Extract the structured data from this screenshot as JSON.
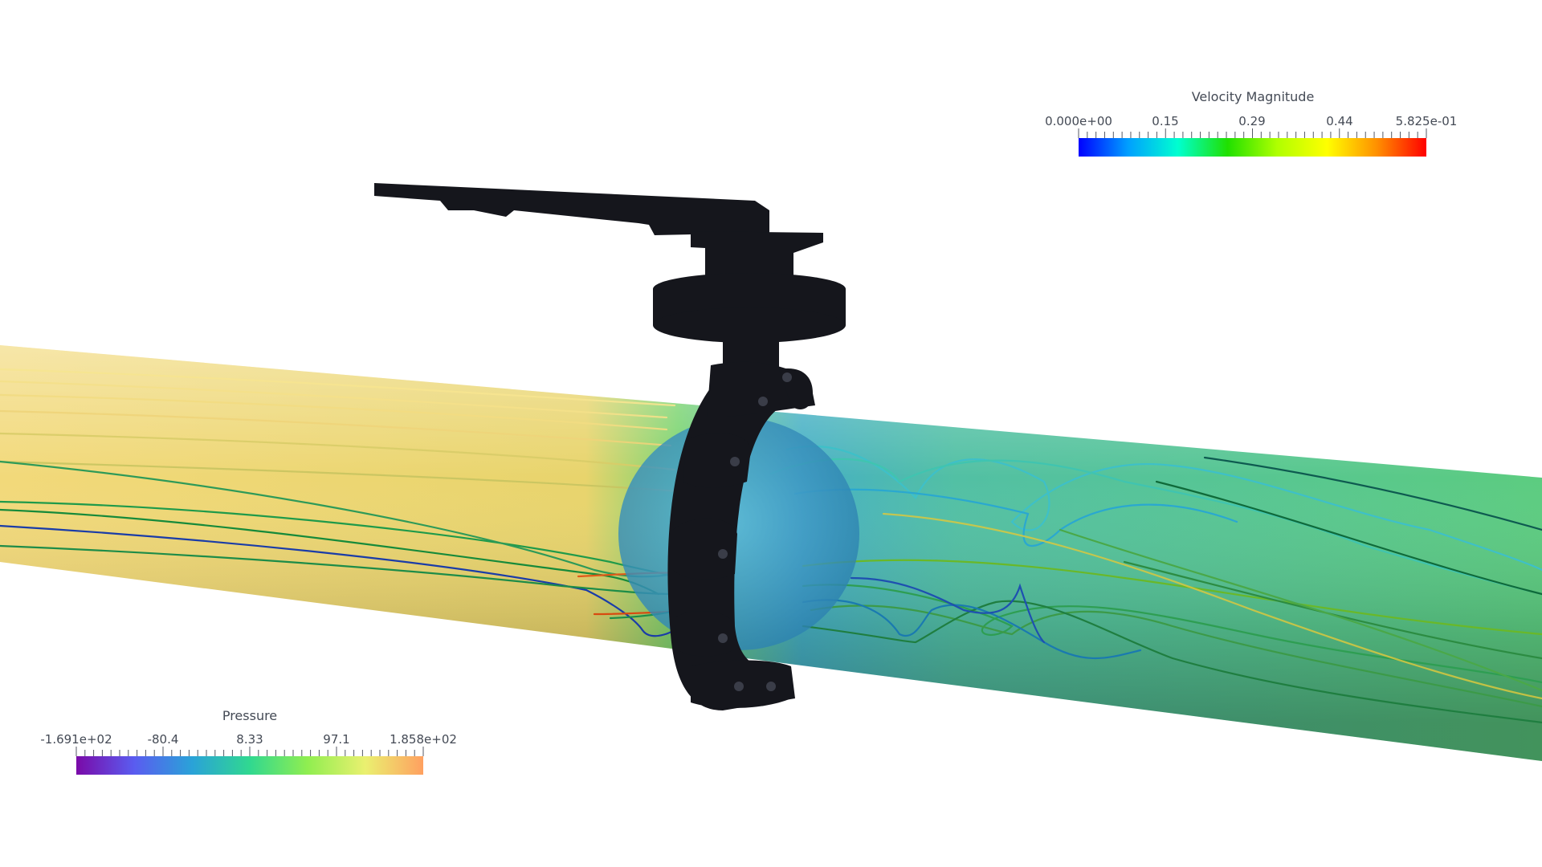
{
  "velocity_legend": {
    "title": "Velocity Magnitude",
    "labels": [
      "0.000e+00",
      "0.15",
      "0.29",
      "0.44",
      "5.825e-01"
    ],
    "colormap": [
      "#0000ff",
      "#00a0ff",
      "#00ffd0",
      "#20e000",
      "#b0ff00",
      "#ffff00",
      "#ff9000",
      "#ff0000"
    ]
  },
  "pressure_legend": {
    "title": "Pressure",
    "labels": [
      "-1.691e+02",
      "-80.4",
      "8.33",
      "97.1",
      "1.858e+02"
    ],
    "colormap": [
      "#7a0aa8",
      "#5a5cf0",
      "#2aa2d8",
      "#30d890",
      "#90ee50",
      "#eaf070",
      "#ffa060"
    ]
  },
  "colors": {
    "valve_body": "#15161c",
    "pipe_upstream": "#e8d070",
    "pipe_downstream": "#55c878",
    "valve_disc": "#2f9ec8"
  }
}
